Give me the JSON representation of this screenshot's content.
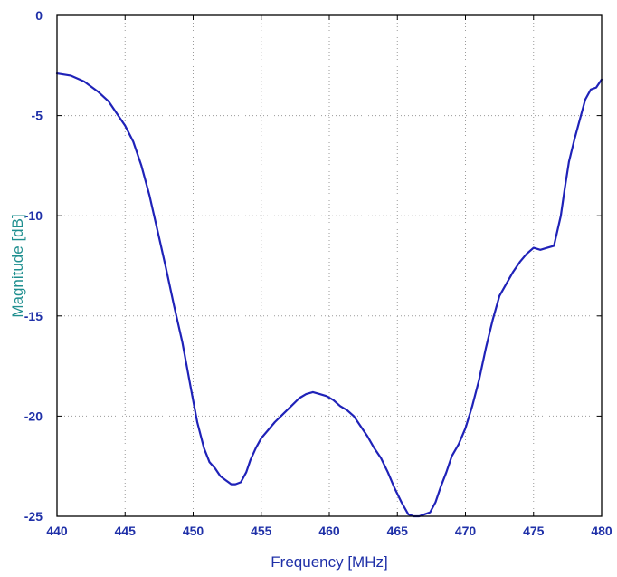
{
  "colors": {
    "line": "#1f22b8",
    "tick_label": "#1f30a8",
    "axis_title": "#1f8f8f",
    "frame": "#000000",
    "grid": "#9a9a9a",
    "background": "#ffffff"
  },
  "chart_data": {
    "type": "line",
    "title": "",
    "xlabel": "Frequency [MHz]",
    "ylabel": "Magnitude [dB]",
    "xlim": [
      440,
      480
    ],
    "ylim": [
      -25,
      0
    ],
    "xticks": [
      440,
      445,
      450,
      455,
      460,
      465,
      470,
      475,
      480
    ],
    "yticks": [
      0,
      -5,
      -10,
      -15,
      -20,
      -25
    ],
    "xtick_labels": [
      "440",
      "445",
      "450",
      "455",
      "460",
      "465",
      "470",
      "475",
      "480"
    ],
    "ytick_labels": [
      "0",
      "-5",
      "-10",
      "-15",
      "-20",
      "-25"
    ],
    "grid": true,
    "grid_style": "dotted",
    "legend": "none",
    "series": [
      {
        "x": [
          440,
          441,
          442,
          443,
          443.8,
          444.5,
          445,
          445.6,
          446.2,
          446.8,
          447.4,
          448,
          448.6,
          449.2,
          449.8,
          450.3,
          450.8,
          451.2,
          451.6,
          452,
          452.4,
          452.8,
          453.1,
          453.5,
          453.9,
          454.2,
          454.6,
          455,
          455.5,
          456,
          456.6,
          457.2,
          457.8,
          458.3,
          458.8,
          459.3,
          459.8,
          460.3,
          460.8,
          461.3,
          461.8,
          462.3,
          462.8,
          463.3,
          463.8,
          464.3,
          464.8,
          465.3,
          465.8,
          466.2,
          466.6,
          467,
          467.4,
          467.8,
          468.2,
          468.6,
          469,
          469.5,
          470,
          470.5,
          471,
          471.5,
          472,
          472.5,
          473,
          473.5,
          474,
          474.5,
          475,
          475.5,
          476,
          476.5,
          477,
          477.3,
          477.6,
          478,
          478.4,
          478.8,
          479.2,
          479.6,
          480
        ],
        "y": [
          -2.9,
          -3.0,
          -3.3,
          -3.8,
          -4.3,
          -5.0,
          -5.5,
          -6.3,
          -7.5,
          -9.0,
          -10.8,
          -12.6,
          -14.5,
          -16.3,
          -18.5,
          -20.3,
          -21.6,
          -22.3,
          -22.6,
          -23.0,
          -23.2,
          -23.4,
          -23.4,
          -23.3,
          -22.8,
          -22.2,
          -21.6,
          -21.1,
          -20.7,
          -20.3,
          -19.9,
          -19.5,
          -19.1,
          -18.9,
          -18.8,
          -18.9,
          -19.0,
          -19.2,
          -19.5,
          -19.7,
          -20.0,
          -20.5,
          -21.0,
          -21.6,
          -22.1,
          -22.8,
          -23.6,
          -24.3,
          -24.9,
          -25.0,
          -25.0,
          -24.9,
          -24.8,
          -24.3,
          -23.5,
          -22.8,
          -22.0,
          -21.4,
          -20.6,
          -19.5,
          -18.2,
          -16.6,
          -15.2,
          -14.0,
          -13.4,
          -12.8,
          -12.3,
          -11.9,
          -11.6,
          -11.7,
          -11.6,
          -11.5,
          -10.0,
          -8.6,
          -7.3,
          -6.2,
          -5.2,
          -4.2,
          -3.7,
          -3.6,
          -3.2
        ]
      }
    ]
  }
}
